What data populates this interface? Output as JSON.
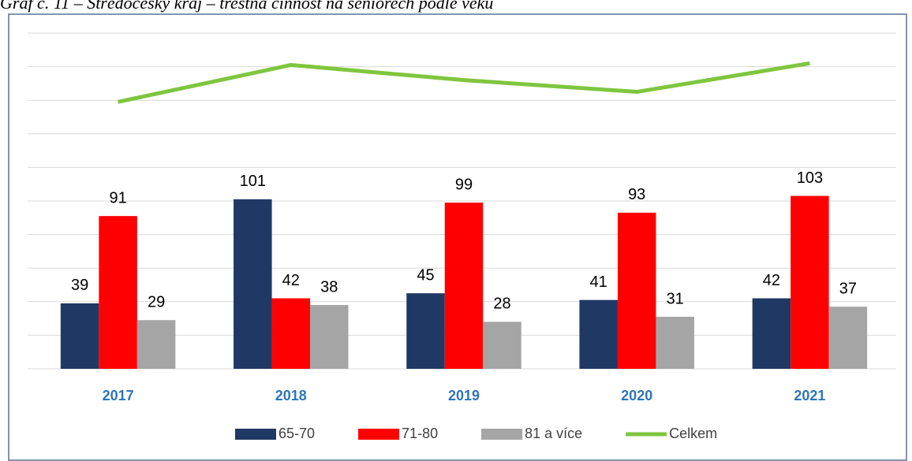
{
  "chart_data": {
    "type": "bar",
    "title": "Graf č. 11 – Středočeský kraj – trestná činnost na seniorech podle věku",
    "categories": [
      "2017",
      "2018",
      "2019",
      "2020",
      "2021"
    ],
    "series": [
      {
        "name": "65-70",
        "color": "#203864",
        "values": [
          39,
          101,
          45,
          41,
          42
        ]
      },
      {
        "name": "71-80",
        "color": "#ff0000",
        "values": [
          91,
          42,
          99,
          93,
          103
        ]
      },
      {
        "name": "81 a více",
        "color": "#a5a5a5",
        "values": [
          29,
          38,
          28,
          31,
          37
        ]
      },
      {
        "name": "Celkem",
        "type": "line",
        "color": "#7ec63f",
        "values": [
          159,
          181,
          172,
          165,
          182
        ]
      }
    ],
    "ylim": [
      0,
      200
    ],
    "yticks": [
      0,
      20,
      40,
      60,
      80,
      100,
      120,
      140,
      160,
      180,
      200
    ],
    "grid": true,
    "legend": "bottom"
  }
}
